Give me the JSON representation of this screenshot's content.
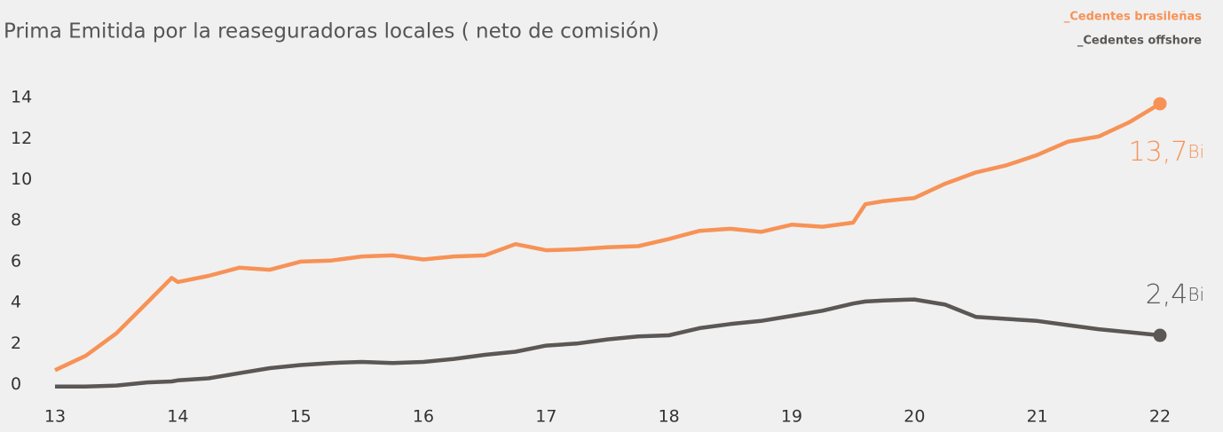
{
  "chart_data": {
    "type": "line",
    "title": "Prima Emitida por la reaseguradoras locales ( neto de comisión)",
    "x": [
      13,
      13.25,
      13.5,
      13.75,
      13.95,
      14,
      14.25,
      14.5,
      14.75,
      15,
      15.25,
      15.5,
      15.75,
      16,
      16.25,
      16.5,
      16.75,
      17,
      17.25,
      17.5,
      17.75,
      18,
      18.25,
      18.5,
      18.75,
      19,
      19.25,
      19.5,
      19.6,
      19.75,
      20,
      20.25,
      20.5,
      20.75,
      21,
      21.25,
      21.5,
      21.75,
      22
    ],
    "series": [
      {
        "name": "_Cedentes brasileñas",
        "color": "#f79256",
        "end_label": "13,7",
        "end_unit": "Bi",
        "values": [
          0.7,
          1.4,
          2.5,
          4.0,
          5.2,
          5.0,
          5.3,
          5.7,
          5.6,
          6.0,
          6.05,
          6.25,
          6.3,
          6.1,
          6.25,
          6.3,
          6.85,
          6.55,
          6.6,
          6.7,
          6.75,
          7.1,
          7.5,
          7.6,
          7.45,
          7.8,
          7.7,
          7.9,
          8.8,
          8.95,
          9.1,
          9.8,
          10.35,
          10.7,
          11.2,
          11.85,
          12.1,
          12.8,
          13.7
        ]
      },
      {
        "name": "_Cedentes offshore",
        "color": "#5a5755",
        "end_label": "2,4",
        "end_unit": "Bi",
        "values": [
          -0.1,
          -0.1,
          -0.05,
          0.1,
          0.15,
          0.2,
          0.3,
          0.55,
          0.8,
          0.95,
          1.05,
          1.1,
          1.05,
          1.1,
          1.25,
          1.45,
          1.6,
          1.9,
          2.0,
          2.2,
          2.35,
          2.4,
          2.75,
          2.95,
          3.1,
          3.35,
          3.6,
          3.95,
          4.05,
          4.1,
          4.15,
          3.9,
          3.3,
          3.2,
          3.1,
          2.9,
          2.7,
          2.55,
          2.4
        ]
      }
    ],
    "xlim": [
      13,
      22
    ],
    "xticks": [
      13,
      14,
      15,
      16,
      17,
      18,
      19,
      20,
      21,
      22
    ],
    "ylim": [
      -0.5,
      14.5
    ],
    "yticks": [
      0,
      2,
      4,
      6,
      8,
      10,
      12,
      14
    ],
    "grid": false,
    "legend": "top-right"
  }
}
